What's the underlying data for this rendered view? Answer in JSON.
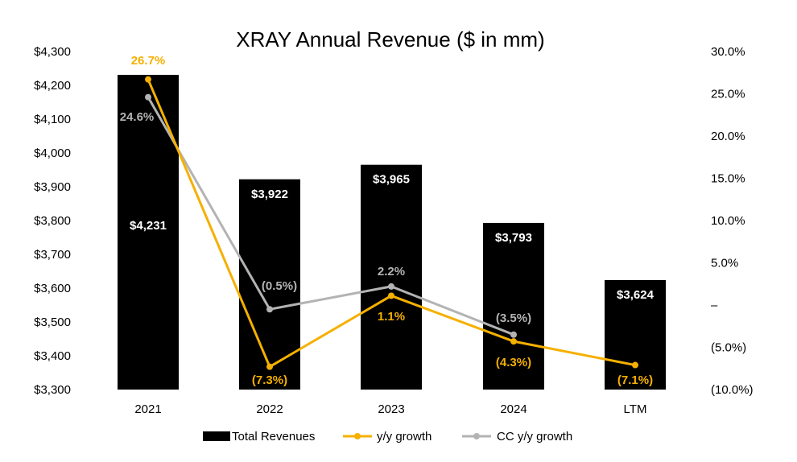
{
  "chart_data": {
    "type": "bar",
    "title": "XRAY Annual Revenue ($ in mm)",
    "categories": [
      "2021",
      "2022",
      "2023",
      "2024",
      "LTM"
    ],
    "left_axis": {
      "ylim": [
        3300,
        4300
      ],
      "ticks": [
        3300,
        3400,
        3500,
        3600,
        3700,
        3800,
        3900,
        4000,
        4100,
        4200,
        4300
      ],
      "tick_labels": [
        "$3,300",
        "$3,400",
        "$3,500",
        "$3,600",
        "$3,700",
        "$3,800",
        "$3,900",
        "$4,000",
        "$4,100",
        "$4,200",
        "$4,300"
      ]
    },
    "right_axis": {
      "ylim": [
        -10,
        30
      ],
      "ticks": [
        -10,
        -5,
        0,
        5,
        10,
        15,
        20,
        25,
        30
      ],
      "tick_labels": [
        "(10.0%)",
        "(5.0%)",
        "–",
        "5.0%",
        "10.0%",
        "15.0%",
        "20.0%",
        "25.0%",
        "30.0%"
      ]
    },
    "series": [
      {
        "name": "Total Revenues",
        "kind": "bar",
        "axis": "left",
        "color": "#000000",
        "values": [
          4231,
          3922,
          3965,
          3793,
          3624
        ],
        "labels": [
          "$4,231",
          "$3,922",
          "$3,965",
          "$3,793",
          "$3,624"
        ]
      },
      {
        "name": "y/y growth",
        "kind": "line",
        "axis": "right",
        "color": "#F5B000",
        "values": [
          26.7,
          -7.3,
          1.1,
          -4.3,
          -7.1
        ],
        "labels": [
          "26.7%",
          "(7.3%)",
          "1.1%",
          "(4.3%)",
          "(7.1%)"
        ]
      },
      {
        "name": "CC y/y growth",
        "kind": "line",
        "axis": "right",
        "color": "#B3B3B3",
        "values": [
          24.6,
          -0.5,
          2.2,
          -3.5,
          null
        ],
        "labels": [
          "24.6%",
          "(0.5%)",
          "2.2%",
          "(3.5%)",
          null
        ]
      }
    ],
    "legend": {
      "position": "bottom-center"
    }
  }
}
